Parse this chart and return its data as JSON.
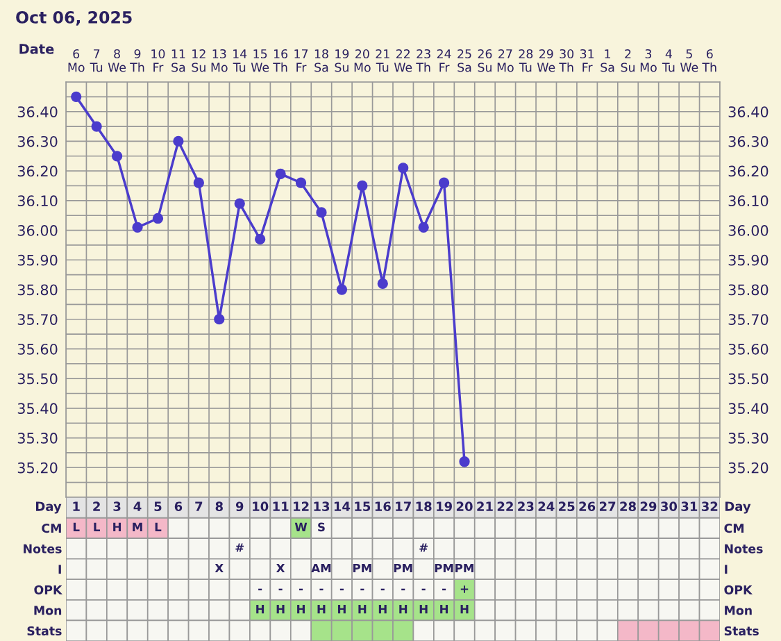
{
  "chart_data": [
    {
      "type": "line",
      "title": "Oct 06, 2025",
      "xlabel": "Date",
      "categories": [
        "6\nMo",
        "7\nTu",
        "8\nWe",
        "9\nTh",
        "10\nFr",
        "11\nSa",
        "12\nSu",
        "13\nMo",
        "14\nTu",
        "15\nWe",
        "16\nTh",
        "17\nFr",
        "18\nSa",
        "19\nSu",
        "20\nMo",
        "21\nTu",
        "22\nWe",
        "23\nTh",
        "24\nFr",
        "25\nSa",
        "26\nSu",
        "27\nMo",
        "28\nTu",
        "29\nWe",
        "30\nTh",
        "31\nFr",
        "1\nSa",
        "2\nSu",
        "3\nMo",
        "4\nTu",
        "5\nWe",
        "6\nTh"
      ],
      "series": [
        {
          "color": "#4b3ccc",
          "values": [
            36.45,
            36.35,
            36.25,
            36.01,
            36.04,
            36.3,
            36.16,
            35.7,
            36.09,
            35.97,
            36.19,
            36.16,
            36.06,
            35.8,
            36.15,
            35.82,
            36.21,
            36.01,
            36.16,
            35.22,
            null,
            null,
            null,
            null,
            null,
            null,
            null,
            null,
            null,
            null,
            null,
            null
          ]
        }
      ],
      "ylim": [
        35.1,
        36.5
      ],
      "yticks": [
        {
          "value": 35.2,
          "label": "35.20"
        },
        {
          "value": 35.3,
          "label": "35.30"
        },
        {
          "value": 35.4,
          "label": "35.40"
        },
        {
          "value": 35.5,
          "label": "35.50"
        },
        {
          "value": 35.6,
          "label": "35.60"
        },
        {
          "value": 35.7,
          "label": "35.70"
        },
        {
          "value": 35.8,
          "label": "35.80"
        },
        {
          "value": 35.9,
          "label": "35.90"
        },
        {
          "value": 36.0,
          "label": "36.00"
        },
        {
          "value": 36.1,
          "label": "36.10"
        },
        {
          "value": 36.2,
          "label": "36.20"
        },
        {
          "value": 36.3,
          "label": "36.30"
        },
        {
          "value": 36.4,
          "label": "36.40"
        }
      ],
      "y2lim": [
        35.1,
        36.5
      ],
      "y2ticks": [
        {
          "value": 35.2,
          "label": "35.20"
        },
        {
          "value": 35.3,
          "label": "35.30"
        },
        {
          "value": 35.4,
          "label": "35.40"
        },
        {
          "value": 35.5,
          "label": "35.50"
        },
        {
          "value": 35.6,
          "label": "35.60"
        },
        {
          "value": 35.7,
          "label": "35.70"
        },
        {
          "value": 35.8,
          "label": "35.80"
        },
        {
          "value": 35.9,
          "label": "35.90"
        },
        {
          "value": 36.0,
          "label": "36.00"
        },
        {
          "value": 36.1,
          "label": "36.10"
        },
        {
          "value": 36.2,
          "label": "36.20"
        },
        {
          "value": 36.3,
          "label": "36.30"
        },
        {
          "value": 36.4,
          "label": "36.40"
        }
      ],
      "grid": true,
      "marker": "circle",
      "line_style": "solid"
    },
    {
      "type": "heatmap",
      "xlabel": "Day",
      "categories": [
        "1",
        "2",
        "3",
        "4",
        "5",
        "6",
        "7",
        "8",
        "9",
        "10",
        "11",
        "12",
        "13",
        "14",
        "15",
        "16",
        "17",
        "18",
        "19",
        "20",
        "21",
        "22",
        "23",
        "24",
        "25",
        "26",
        "27",
        "28",
        "29",
        "30",
        "31",
        "32"
      ],
      "y_categories": [
        "CM",
        "Notes",
        "I",
        "OPK",
        "Mon",
        "Stats"
      ],
      "y2_categories": [
        "CM",
        "Notes",
        "I",
        "OPK",
        "Mon",
        "Stats"
      ],
      "cells": [
        [
          null,
          null,
          null,
          null,
          null,
          null,
          null,
          null,
          null,
          null,
          null,
          null,
          null,
          null,
          null,
          null,
          null,
          null,
          null,
          null,
          null,
          null,
          null,
          null,
          null,
          null,
          null,
          null,
          null,
          null,
          null,
          null
        ],
        [
          null,
          null,
          null,
          null,
          null,
          null,
          null,
          null,
          null,
          null,
          null,
          null,
          null,
          null,
          null,
          null,
          null,
          null,
          null,
          null,
          null,
          null,
          null,
          null,
          null,
          null,
          null,
          null,
          null,
          null,
          null,
          null
        ],
        [
          null,
          null,
          null,
          null,
          null,
          null,
          null,
          null,
          null,
          null,
          null,
          null,
          null,
          null,
          null,
          null,
          null,
          null,
          null,
          null,
          null,
          null,
          null,
          null,
          null,
          null,
          null,
          null,
          null,
          null,
          null,
          null
        ],
        [
          null,
          null,
          null,
          null,
          null,
          null,
          null,
          null,
          null,
          null,
          null,
          null,
          null,
          null,
          null,
          null,
          null,
          null,
          null,
          null,
          null,
          null,
          null,
          null,
          null,
          null,
          null,
          null,
          null,
          null,
          null,
          null
        ],
        [
          null,
          null,
          null,
          null,
          null,
          null,
          null,
          null,
          null,
          null,
          null,
          null,
          null,
          null,
          null,
          null,
          null,
          null,
          null,
          null,
          null,
          null,
          null,
          null,
          null,
          null,
          null,
          null,
          null,
          null,
          null,
          null
        ],
        [
          null,
          null,
          null,
          null,
          null,
          null,
          null,
          null,
          null,
          null,
          null,
          null,
          null,
          null,
          null,
          null,
          null,
          null,
          null,
          null,
          null,
          null,
          null,
          null,
          null,
          null,
          null,
          null,
          null,
          null,
          null,
          null
        ]
      ],
      "cell_labels": [
        [
          "L",
          "L",
          "H",
          "M",
          "L",
          null,
          null,
          null,
          null,
          null,
          null,
          "W",
          "S",
          null,
          null,
          null,
          null,
          null,
          null,
          null,
          null,
          null,
          null,
          null,
          null,
          null,
          null,
          null,
          null,
          null,
          null,
          null
        ],
        [
          null,
          null,
          null,
          null,
          null,
          null,
          null,
          null,
          "#",
          null,
          null,
          null,
          null,
          null,
          null,
          null,
          null,
          "#",
          null,
          null,
          null,
          null,
          null,
          null,
          null,
          null,
          null,
          null,
          null,
          null,
          null,
          null
        ],
        [
          null,
          null,
          null,
          null,
          null,
          null,
          null,
          "X",
          null,
          null,
          "X",
          null,
          "AM",
          null,
          "PM",
          null,
          "PM",
          null,
          "PM",
          "PM",
          null,
          null,
          null,
          null,
          null,
          null,
          null,
          null,
          null,
          null,
          null,
          null
        ],
        [
          null,
          null,
          null,
          null,
          null,
          null,
          null,
          null,
          null,
          "-",
          "-",
          "-",
          "-",
          "-",
          "-",
          "-",
          "-",
          "-",
          "-",
          "+",
          null,
          null,
          null,
          null,
          null,
          null,
          null,
          null,
          null,
          null,
          null,
          null
        ],
        [
          null,
          null,
          null,
          null,
          null,
          null,
          null,
          null,
          null,
          "H",
          "H",
          "H",
          "H",
          "H",
          "H",
          "H",
          "H",
          "H",
          "H",
          "H",
          null,
          null,
          null,
          null,
          null,
          null,
          null,
          null,
          null,
          null,
          null,
          null
        ],
        [
          null,
          null,
          null,
          null,
          null,
          null,
          null,
          null,
          null,
          null,
          null,
          null,
          null,
          null,
          null,
          null,
          null,
          null,
          null,
          null,
          null,
          null,
          null,
          null,
          null,
          null,
          null,
          null,
          null,
          null,
          null,
          null
        ]
      ],
      "colors": [
        [
          "#f4b8c8",
          "#f4b8c8",
          "#f4b8c8",
          "#f4b8c8",
          "#f4b8c8",
          null,
          null,
          null,
          null,
          null,
          null,
          "#a6e38a",
          null,
          null,
          null,
          null,
          null,
          null,
          null,
          null,
          null,
          null,
          null,
          null,
          null,
          null,
          null,
          null,
          null,
          null,
          null,
          null
        ],
        [
          null,
          null,
          null,
          null,
          null,
          null,
          null,
          null,
          null,
          null,
          null,
          null,
          null,
          null,
          null,
          null,
          null,
          null,
          null,
          null,
          null,
          null,
          null,
          null,
          null,
          null,
          null,
          null,
          null,
          null,
          null,
          null
        ],
        [
          null,
          null,
          null,
          null,
          null,
          null,
          null,
          null,
          null,
          null,
          null,
          null,
          null,
          null,
          null,
          null,
          null,
          null,
          null,
          null,
          null,
          null,
          null,
          null,
          null,
          null,
          null,
          null,
          null,
          null,
          null,
          null
        ],
        [
          null,
          null,
          null,
          null,
          null,
          null,
          null,
          null,
          null,
          null,
          null,
          null,
          null,
          null,
          null,
          null,
          null,
          null,
          null,
          "#a6e38a",
          null,
          null,
          null,
          null,
          null,
          null,
          null,
          null,
          null,
          null,
          null,
          null
        ],
        [
          null,
          null,
          null,
          null,
          null,
          null,
          null,
          null,
          null,
          "#a6e38a",
          "#a6e38a",
          "#a6e38a",
          "#a6e38a",
          "#a6e38a",
          "#a6e38a",
          "#a6e38a",
          "#a6e38a",
          "#a6e38a",
          "#a6e38a",
          "#a6e38a",
          null,
          null,
          null,
          null,
          null,
          null,
          null,
          null,
          null,
          null,
          null,
          null
        ],
        [
          null,
          null,
          null,
          null,
          null,
          null,
          null,
          null,
          null,
          null,
          null,
          null,
          "#a6e38a",
          "#a6e38a",
          "#a6e38a",
          "#a6e38a",
          "#a6e38a",
          null,
          null,
          null,
          null,
          null,
          null,
          null,
          null,
          null,
          null,
          "#f4b8c8",
          "#f4b8c8",
          "#f4b8c8",
          "#f4b8c8",
          "#f4b8c8"
        ]
      ]
    }
  ]
}
